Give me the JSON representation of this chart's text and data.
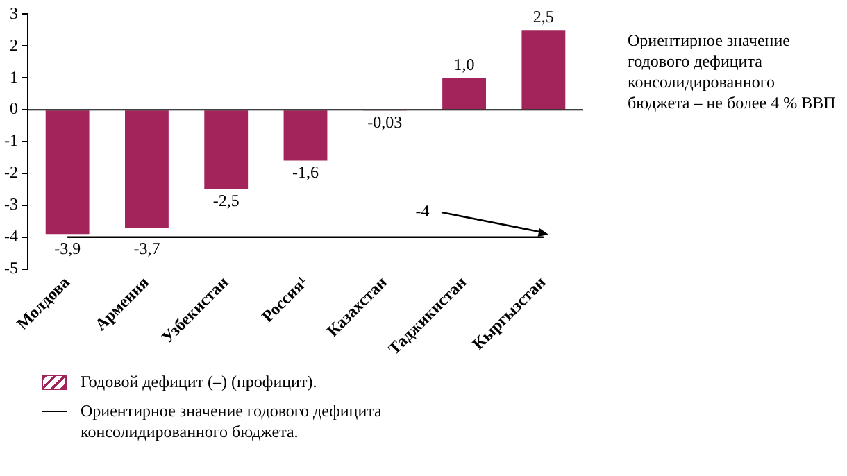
{
  "chart_data": {
    "type": "bar",
    "categories": [
      "Молдова",
      "Армения",
      "Узбекистан",
      "Россия¹",
      "Казахстан",
      "Таджикистан",
      "Кыргызстан"
    ],
    "series": [
      {
        "name": "Годовой дефицит (–) (профицит).",
        "color": "#a3245a",
        "values": [
          -3.9,
          -3.7,
          -2.5,
          -1.6,
          -0.03,
          1.0,
          2.5
        ],
        "value_labels": [
          "-3,9",
          "-3,7",
          "-2,5",
          "-1,6",
          "-0,03",
          "1,0",
          "2,5"
        ]
      },
      {
        "type": "line",
        "name": "Ориентирное значение годового дефицита консолидированного бюджета.",
        "color": "#000000",
        "values": [
          -4,
          -4,
          -4,
          -4,
          -4,
          -4,
          -4
        ]
      }
    ],
    "ylim": [
      -5,
      3
    ],
    "yticks": [
      -5,
      -4,
      -3,
      -2,
      -1,
      0,
      1,
      2,
      3
    ],
    "grid": false,
    "legend": "bottom left",
    "marker": "none",
    "annotations": [
      "Ориентирное значение годового дефицита консолидированного бюджета – не более 4 % ВВП",
      {
        "text": "-4",
        "y": -4
      }
    ]
  }
}
